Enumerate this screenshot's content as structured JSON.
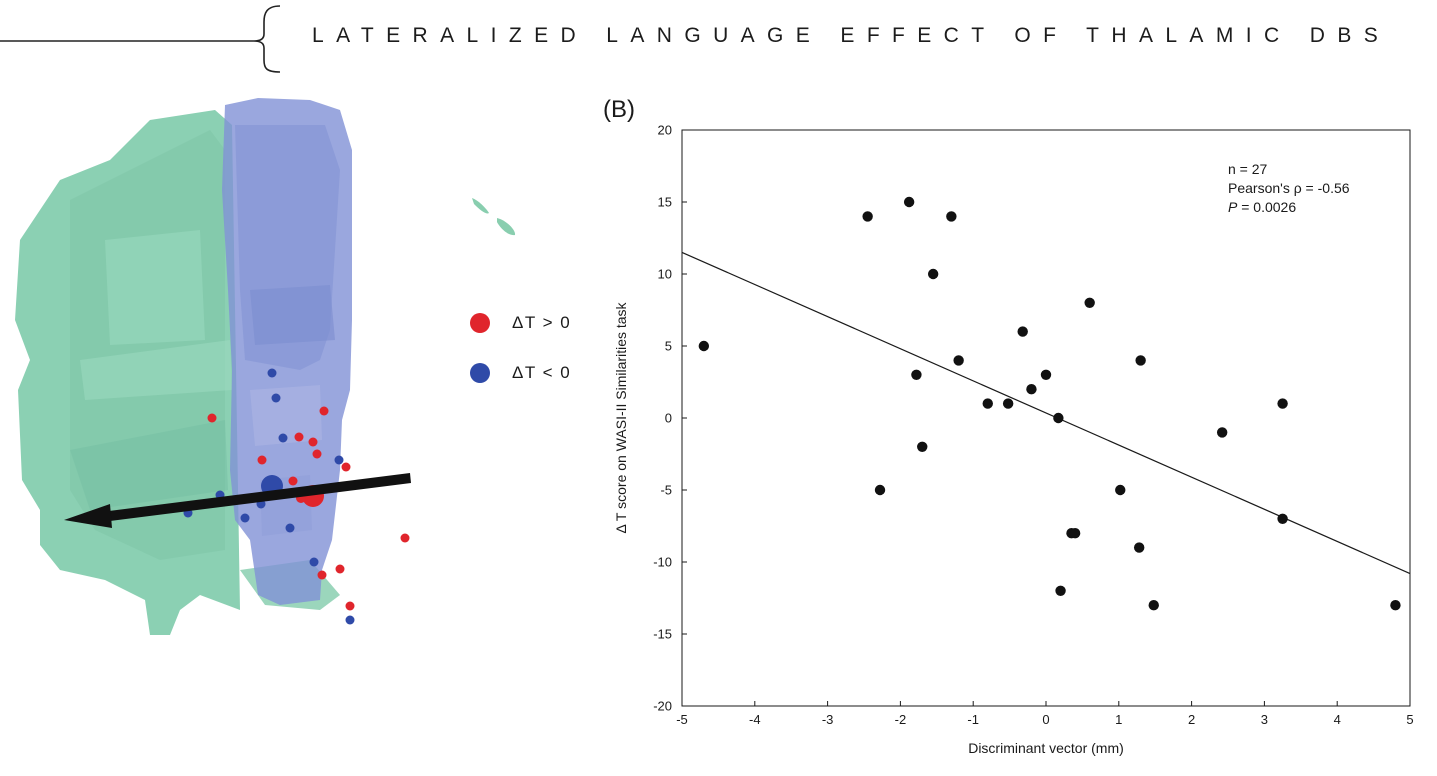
{
  "header": {
    "title": "LATERALIZED LANGUAGE EFFECT OF THALAMIC DBS"
  },
  "panel_a": {
    "legend": [
      {
        "label": "ΔT > 0",
        "color": "#e0252c"
      },
      {
        "label": "ΔT < 0",
        "color": "#2f4aa8"
      }
    ],
    "colors": {
      "left_structure": "#6cc29e",
      "right_structure": "#7f8fd4",
      "arrow": "#111111"
    }
  },
  "panel_b": {
    "label": "(B)"
  },
  "chart_data": {
    "type": "scatter",
    "title": "",
    "xlabel": "Discriminant vector (mm)",
    "ylabel": "Δ T score on WASI-II Similarities task",
    "xlim": [
      -5,
      5
    ],
    "ylim": [
      -20,
      20
    ],
    "xticks": [
      -5,
      -4,
      -3,
      -2,
      -1,
      0,
      1,
      2,
      3,
      4,
      5
    ],
    "yticks": [
      -20,
      -15,
      -10,
      -5,
      0,
      5,
      10,
      15,
      20
    ],
    "grid": false,
    "points": [
      {
        "x": -4.7,
        "y": 5
      },
      {
        "x": -2.45,
        "y": 14
      },
      {
        "x": -1.88,
        "y": 15
      },
      {
        "x": -1.3,
        "y": 14
      },
      {
        "x": -1.55,
        "y": 10
      },
      {
        "x": -1.78,
        "y": 3
      },
      {
        "x": -1.2,
        "y": 4
      },
      {
        "x": -2.28,
        "y": -5
      },
      {
        "x": -1.7,
        "y": -2
      },
      {
        "x": -0.8,
        "y": 1
      },
      {
        "x": -0.52,
        "y": 1
      },
      {
        "x": -0.32,
        "y": 6
      },
      {
        "x": -0.2,
        "y": 2
      },
      {
        "x": 0.0,
        "y": 3
      },
      {
        "x": 0.17,
        "y": 0
      },
      {
        "x": 0.6,
        "y": 8
      },
      {
        "x": 0.35,
        "y": -8
      },
      {
        "x": 0.4,
        "y": -8
      },
      {
        "x": 0.2,
        "y": -12
      },
      {
        "x": 1.02,
        "y": -5
      },
      {
        "x": 1.3,
        "y": 4
      },
      {
        "x": 1.28,
        "y": -9
      },
      {
        "x": 1.48,
        "y": -13
      },
      {
        "x": 2.42,
        "y": -1
      },
      {
        "x": 3.25,
        "y": 1
      },
      {
        "x": 3.25,
        "y": -7
      },
      {
        "x": 4.8,
        "y": -13
      }
    ],
    "fit_line": {
      "x": [
        -5,
        5
      ],
      "y": [
        11.5,
        -10.8
      ]
    },
    "annotations": [
      {
        "text": "n = 27"
      },
      {
        "text": "Pearson's ρ = -0.56"
      },
      {
        "prefix": "P",
        "text": " = 0.0026"
      }
    ]
  }
}
